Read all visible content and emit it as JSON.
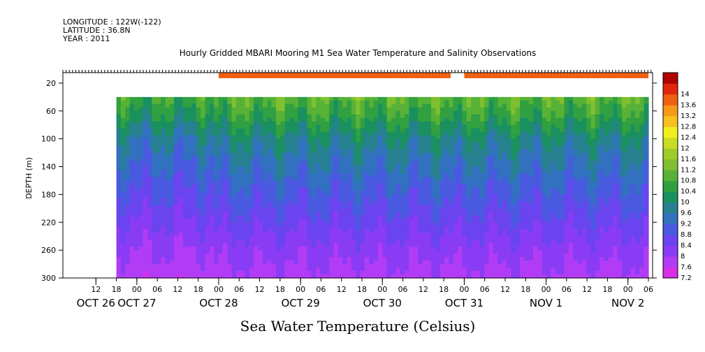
{
  "header": {
    "lines": [
      "LONGITUDE : 122W(-122)",
      "LATITUDE : 36.8N",
      "YEAR : 2011"
    ]
  },
  "caption": "Sea Water Temperature (Celsius)",
  "chart_data": {
    "type": "heatmap",
    "title": "Hourly Gridded MBARI Mooring M1 Sea Water Temperature and Salinity Observations",
    "ylabel": "DEPTH (m)",
    "xlabel": "",
    "colorbar_label": "Sea Water Temperature (Celsius)",
    "ylim": [
      300,
      5
    ],
    "y_ticks": [
      20,
      60,
      100,
      140,
      180,
      220,
      260,
      300
    ],
    "x_range_hours": [
      0,
      168
    ],
    "x_ticks": [
      {
        "h": 6,
        "label": "12"
      },
      {
        "h": 12,
        "label": "18"
      },
      {
        "h": 18,
        "label": "00"
      },
      {
        "h": 24,
        "label": "06"
      },
      {
        "h": 30,
        "label": "12"
      },
      {
        "h": 36,
        "label": "18"
      },
      {
        "h": 42,
        "label": "00"
      },
      {
        "h": 48,
        "label": "06"
      },
      {
        "h": 54,
        "label": "12"
      },
      {
        "h": 60,
        "label": "18"
      },
      {
        "h": 66,
        "label": "00"
      },
      {
        "h": 72,
        "label": "06"
      },
      {
        "h": 78,
        "label": "12"
      },
      {
        "h": 84,
        "label": "18"
      },
      {
        "h": 90,
        "label": "00"
      },
      {
        "h": 96,
        "label": "06"
      },
      {
        "h": 102,
        "label": "12"
      },
      {
        "h": 108,
        "label": "18"
      },
      {
        "h": 114,
        "label": "00"
      },
      {
        "h": 120,
        "label": "06"
      },
      {
        "h": 126,
        "label": "12"
      },
      {
        "h": 132,
        "label": "18"
      },
      {
        "h": 138,
        "label": "00"
      },
      {
        "h": 144,
        "label": "06"
      },
      {
        "h": 150,
        "label": "12"
      },
      {
        "h": 156,
        "label": "18"
      },
      {
        "h": 162,
        "label": "00"
      },
      {
        "h": 168,
        "label": "06"
      }
    ],
    "day_labels": [
      {
        "h": 6,
        "label": "OCT 26"
      },
      {
        "h": 18,
        "label": "OCT 27"
      },
      {
        "h": 42,
        "label": "OCT 28"
      },
      {
        "h": 66,
        "label": "OCT 29"
      },
      {
        "h": 90,
        "label": "OCT 30"
      },
      {
        "h": 114,
        "label": "OCT 31"
      },
      {
        "h": 138,
        "label": "NOV  1"
      },
      {
        "h": 162,
        "label": "NOV  2"
      }
    ],
    "colorbar_levels": [
      7.2,
      7.6,
      8,
      8.4,
      8.8,
      9.2,
      9.6,
      10,
      10.4,
      10.8,
      11.2,
      11.6,
      12,
      12.4,
      12.8,
      13.2,
      13.6,
      14,
      14.4
    ],
    "colorbar_labels": [
      "7.2",
      "7.6",
      "8",
      "8.4",
      "8.8",
      "9.2",
      "9.6",
      "10",
      "10.4",
      "10.8",
      "11.2",
      "11.6",
      "12",
      "12.4",
      "12.8",
      "13.2",
      "13.6",
      "14"
    ],
    "colorbar_colors": [
      "#d82ee8",
      "#b23cf5",
      "#8a3cf5",
      "#6a44ee",
      "#4a5ae0",
      "#3270c0",
      "#268090",
      "#1a9060",
      "#30a040",
      "#58b238",
      "#80c030",
      "#a0cc2a",
      "#c8dc22",
      "#f0f020",
      "#f8c020",
      "#f89818",
      "#f06010",
      "#e02808",
      "#b00000"
    ],
    "depth_levels": [
      40,
      60,
      80,
      100,
      120,
      140,
      160,
      180,
      200,
      220,
      240,
      260,
      280,
      300
    ],
    "profile_mean": [
      10.9,
      10.6,
      10.2,
      9.8,
      9.55,
      9.35,
      9.1,
      8.9,
      8.7,
      8.5,
      8.3,
      8.1,
      7.95,
      7.8
    ],
    "surface_band": {
      "depth_range": [
        5,
        13
      ],
      "segments": [
        [
          42,
          110
        ],
        [
          114,
          168
        ]
      ],
      "temperature": 13.6
    },
    "profile_start_hour": 12
  }
}
